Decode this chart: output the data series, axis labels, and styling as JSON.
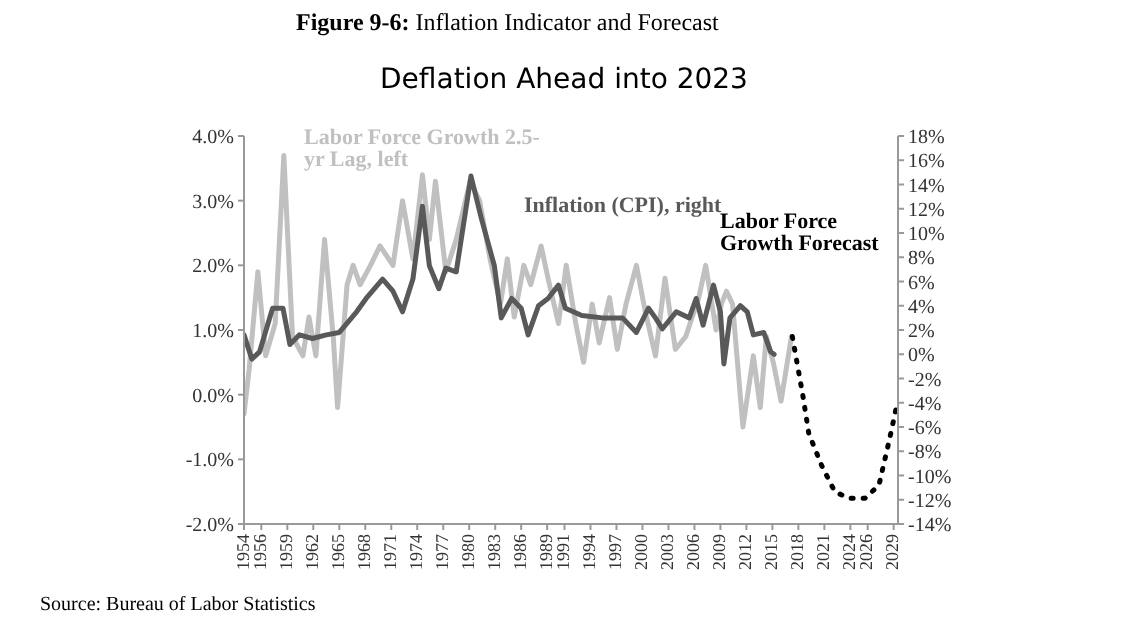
{
  "chart_data": {
    "type": "line",
    "title": "Figure 9-6: Inflation Indicator and Forecast",
    "subtitle": "Deflation Ahead into 2023",
    "annotations": [
      "Source: Bureau of Labor Statistics"
    ],
    "xlim": [
      1954,
      2029.5
    ],
    "xticks": [
      1954,
      1956,
      1959,
      1962,
      1965,
      1968,
      1971,
      1974,
      1977,
      1980,
      1983,
      1986,
      1989,
      1991,
      1994,
      1997,
      2000,
      2003,
      2006,
      2009,
      2012,
      2015,
      2018,
      2021,
      2024,
      2026,
      2029
    ],
    "ylim": [
      -2,
      4
    ],
    "yticks": [
      {
        "value": -2,
        "label": "-2.0%"
      },
      {
        "value": -1,
        "label": "-1.0%"
      },
      {
        "value": 0,
        "label": "0.0%"
      },
      {
        "value": 1,
        "label": "1.0%"
      },
      {
        "value": 2,
        "label": "2.0%"
      },
      {
        "value": 3,
        "label": "3.0%"
      },
      {
        "value": 4,
        "label": "4.0%"
      }
    ],
    "y2lim": [
      -14,
      18
    ],
    "y2ticks": [
      {
        "value": -14,
        "label": "-14%"
      },
      {
        "value": -12,
        "label": "-12%"
      },
      {
        "value": -10,
        "label": "-10%"
      },
      {
        "value": -8,
        "label": "-8%"
      },
      {
        "value": -6,
        "label": "-6%"
      },
      {
        "value": -4,
        "label": "-4%"
      },
      {
        "value": -2,
        "label": "-2%"
      },
      {
        "value": 0,
        "label": "0%"
      },
      {
        "value": 2,
        "label": "2%"
      },
      {
        "value": 4,
        "label": "4%"
      },
      {
        "value": 6,
        "label": "6%"
      },
      {
        "value": 8,
        "label": "8%"
      },
      {
        "value": 10,
        "label": "10%"
      },
      {
        "value": 12,
        "label": "12%"
      },
      {
        "value": 14,
        "label": "14%"
      },
      {
        "value": 16,
        "label": "16%"
      },
      {
        "value": 18,
        "label": "18%"
      }
    ],
    "grid": false,
    "legend": false,
    "marker": "none",
    "series": [
      {
        "name": "Labor Force Growth 2.5-yr Lag, left",
        "color": "#c0c0c0",
        "line_style": "solid",
        "x": [
          1954,
          1954.6,
          1955.6,
          1956.5,
          1957.6,
          1958.6,
          1959.6,
          1960.8,
          1961.5,
          1962.3,
          1963.3,
          1964.3,
          1964.8,
          1965.9,
          1966.6,
          1967.4,
          1968.6,
          1969.7,
          1971.2,
          1972.3,
          1973.5,
          1974.6,
          1975.4,
          1976.1,
          1977.3,
          1978.5,
          1980.1,
          1981.2,
          1982.4,
          1983.6,
          1984.4,
          1985.2,
          1986.3,
          1987.1,
          1988.3,
          1989.1,
          1990.3,
          1991.2,
          1992.3,
          1993.2,
          1994.2,
          1995,
          1996.2,
          1997.1,
          1998.1,
          1999.3,
          2000.3,
          2001.5,
          2002.6,
          2003.8,
          2005,
          2006.5,
          2007.3,
          2008.5,
          2009.1,
          2009.7,
          2010.4,
          2011.6,
          2012.8,
          2013.6,
          2014.3,
          2015.1,
          2016,
          2017.2
        ],
        "values": [
          -0.3,
          0.4,
          1.9,
          0.6,
          1.1,
          3.7,
          0.9,
          0.6,
          1.2,
          0.6,
          2.4,
          0.9,
          -0.2,
          1.7,
          2.0,
          1.7,
          2.0,
          2.3,
          2.0,
          3.0,
          2.1,
          3.4,
          2.4,
          3.3,
          1.9,
          2.4,
          3.3,
          3.0,
          2.1,
          1.4,
          2.1,
          1.2,
          2.0,
          1.7,
          2.3,
          1.8,
          1.1,
          2.0,
          1.1,
          0.5,
          1.4,
          0.8,
          1.5,
          0.7,
          1.4,
          2.0,
          1.3,
          0.6,
          1.8,
          0.7,
          0.9,
          1.5,
          2.0,
          1.0,
          1.4,
          1.6,
          1.4,
          -0.5,
          0.6,
          -0.2,
          0.9,
          0.5,
          -0.1,
          0.9
        ]
      },
      {
        "name": "Inflation (CPI), right",
        "color": "#595959",
        "axis": "y2",
        "line_style": "solid",
        "x": [
          1954,
          1954.9,
          1955.8,
          1957.3,
          1958.5,
          1959.3,
          1960.4,
          1961.9,
          1963.5,
          1965,
          1967,
          1968.1,
          1970,
          1971.2,
          1972.3,
          1973.5,
          1974.6,
          1975.4,
          1976.5,
          1977.3,
          1978.5,
          1980.2,
          1981.4,
          1982.9,
          1983.7,
          1984.9,
          1986,
          1986.8,
          1988,
          1989.1,
          1990.3,
          1991.1,
          1993,
          1995.4,
          1997.7,
          1999.3,
          2000.7,
          2001.5,
          2002.3,
          2003.9,
          2005.4,
          2006.2,
          2007,
          2008.2,
          2009,
          2009.4,
          2010.1,
          2011.3,
          2012.1,
          2012.8,
          2014,
          2014.8,
          2015.2
        ],
        "values": [
          1.6,
          -0.4,
          0.2,
          3.8,
          3.8,
          0.8,
          1.6,
          1.3,
          1.6,
          1.8,
          3.5,
          4.6,
          6.2,
          5.2,
          3.5,
          6.2,
          12.2,
          7.3,
          5.4,
          7.1,
          6.8,
          14.7,
          11.2,
          7.3,
          3.0,
          4.6,
          3.8,
          1.6,
          4.0,
          4.6,
          5.7,
          3.8,
          3.2,
          3.0,
          3.0,
          1.8,
          3.8,
          3.0,
          2.1,
          3.5,
          3.0,
          4.6,
          2.4,
          5.7,
          3.5,
          -0.8,
          3.0,
          4.0,
          3.5,
          1.6,
          1.8,
          0.2,
          0.0
        ]
      },
      {
        "name": "Labor Force Growth Forecast",
        "color": "#000000",
        "line_style": "dotted",
        "x": [
          2017.3,
          2018.5,
          2019.2,
          2020.7,
          2022.2,
          2023.8,
          2025.7,
          2027.3,
          2028.5,
          2029.3
        ],
        "values": [
          0.9,
          0.0,
          -0.6,
          -1.1,
          -1.5,
          -1.6,
          -1.6,
          -1.4,
          -0.7,
          -0.2
        ]
      }
    ]
  }
}
